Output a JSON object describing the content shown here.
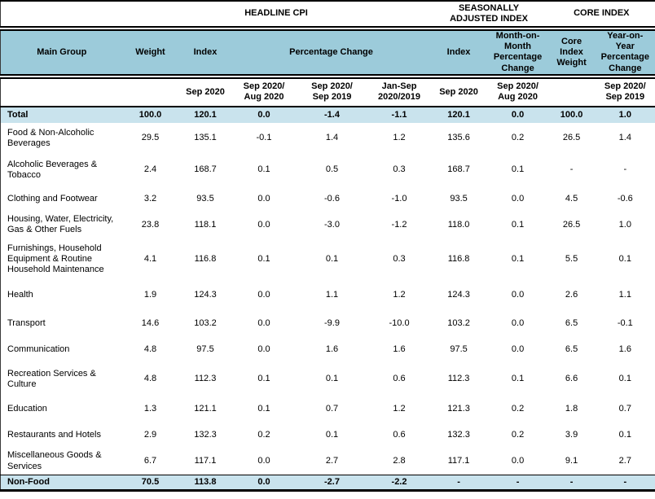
{
  "colors": {
    "header_teal": "#9CCBDA",
    "highlight_row": "#C9E3ED",
    "border": "#000000"
  },
  "title_groups": {
    "headline": "HEADLINE CPI",
    "seasonally_adjusted": "SEASONALLY\nADJUSTED INDEX",
    "core": "CORE INDEX"
  },
  "columns": {
    "main_group": "Main Group",
    "weight": "Weight",
    "index": "Index",
    "percentage_change": "Percentage Change",
    "sa_index": "Index",
    "mom_percentage_change": "Month-on-\nMonth\nPercentage\nChange",
    "core_index_weight": "Core\nIndex\nWeight",
    "yoy_percentage_change": "Year-on-\nYear\nPercentage\nChange"
  },
  "sub_headers": [
    "Sep 2020",
    "Sep 2020/\nAug 2020",
    "Sep 2020/\nSep 2019",
    "Jan-Sep\n2020/2019",
    "Sep 2020",
    "Sep 2020/\nAug 2020",
    "",
    "Sep 2020/\nSep 2019"
  ],
  "rows": [
    {
      "name": "Total",
      "highlight": true,
      "values": [
        "100.0",
        "120.1",
        "0.0",
        "-1.4",
        "-1.1",
        "120.1",
        "0.0",
        "100.0",
        "1.0"
      ]
    },
    {
      "name": "Food & Non-Alcoholic Beverages",
      "highlight": false,
      "values": [
        "29.5",
        "135.1",
        "-0.1",
        "1.4",
        "1.2",
        "135.6",
        "0.2",
        "26.5",
        "1.4"
      ]
    },
    {
      "name": "Alcoholic Beverages & Tobacco",
      "highlight": false,
      "values": [
        "2.4",
        "168.7",
        "0.1",
        "0.5",
        "0.3",
        "168.7",
        "0.1",
        "-",
        "-"
      ]
    },
    {
      "name": "Clothing and Footwear",
      "highlight": false,
      "values": [
        "3.2",
        "93.5",
        "0.0",
        "-0.6",
        "-1.0",
        "93.5",
        "0.0",
        "4.5",
        "-0.6"
      ]
    },
    {
      "name": "Housing, Water, Electricity, Gas & Other Fuels",
      "highlight": false,
      "values": [
        "23.8",
        "118.1",
        "0.0",
        "-3.0",
        "-1.2",
        "118.0",
        "0.1",
        "26.5",
        "1.0"
      ]
    },
    {
      "name": "Furnishings, Household Equipment  & Routine Household Maintenance",
      "highlight": false,
      "values": [
        "4.1",
        "116.8",
        "0.1",
        "0.1",
        "0.3",
        "116.8",
        "0.1",
        "5.5",
        "0.1"
      ]
    },
    {
      "name": "Health",
      "highlight": false,
      "values": [
        "1.9",
        "124.3",
        "0.0",
        "1.1",
        "1.2",
        "124.3",
        "0.0",
        "2.6",
        "1.1"
      ]
    },
    {
      "name": "Transport",
      "highlight": false,
      "values": [
        "14.6",
        "103.2",
        "0.0",
        "-9.9",
        "-10.0",
        "103.2",
        "0.0",
        "6.5",
        "-0.1"
      ]
    },
    {
      "name": "Communication",
      "highlight": false,
      "values": [
        "4.8",
        "97.5",
        "0.0",
        "1.6",
        "1.6",
        "97.5",
        "0.0",
        "6.5",
        "1.6"
      ]
    },
    {
      "name": "Recreation Services & Culture",
      "highlight": false,
      "values": [
        "4.8",
        "112.3",
        "0.1",
        "0.1",
        "0.6",
        "112.3",
        "0.1",
        "6.6",
        "0.1"
      ]
    },
    {
      "name": "Education",
      "highlight": false,
      "values": [
        "1.3",
        "121.1",
        "0.1",
        "0.7",
        "1.2",
        "121.3",
        "0.2",
        "1.8",
        "0.7"
      ]
    },
    {
      "name": "Restaurants and Hotels",
      "highlight": false,
      "values": [
        "2.9",
        "132.3",
        "0.2",
        "0.1",
        "0.6",
        "132.3",
        "0.2",
        "3.9",
        "0.1"
      ]
    },
    {
      "name": "Miscellaneous Goods & Services",
      "highlight": false,
      "values": [
        "6.7",
        "117.1",
        "0.0",
        "2.7",
        "2.8",
        "117.1",
        "0.0",
        "9.1",
        "2.7"
      ]
    },
    {
      "name": "Non-Food",
      "highlight": true,
      "values": [
        "70.5",
        "113.8",
        "0.0",
        "-2.7",
        "-2.2",
        "-",
        "-",
        "-",
        "-"
      ]
    }
  ]
}
